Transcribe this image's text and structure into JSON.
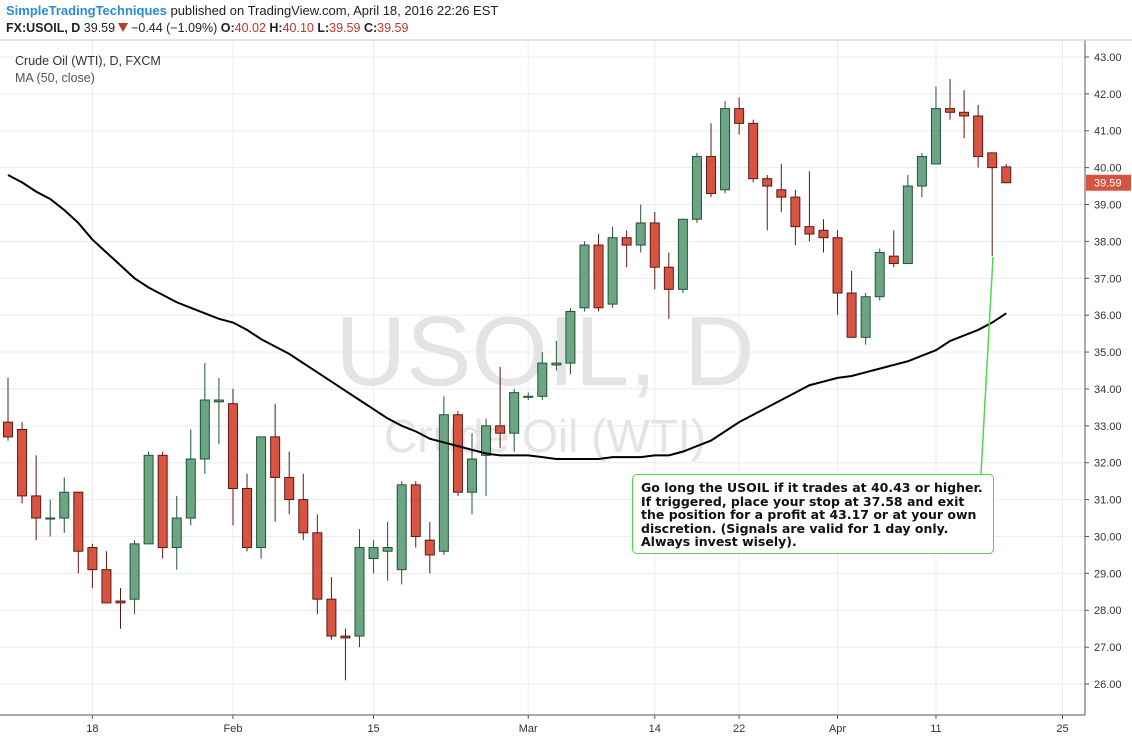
{
  "header": {
    "author": "SimpleTradingTechniques",
    "published": "published on TradingView.com, April 18, 2016 22:26 EST",
    "symbol": "FX:USOIL, D",
    "last": "39.59",
    "change": "−0.44 (−1.09%)",
    "ohlc": [
      {
        "label": "O:",
        "value": "40.02"
      },
      {
        "label": "H:",
        "value": "40.10"
      },
      {
        "label": "L:",
        "value": "39.59"
      },
      {
        "label": "C:",
        "value": "39.59"
      }
    ]
  },
  "chart_data": {
    "type": "candlestick",
    "title": "Crude Oil (WTI), D, FXCM",
    "watermark": [
      "USOIL, D",
      "Crude Oil (WTI)"
    ],
    "annotation": "Go long the USOIL if it trades at 40.43 or higher. If triggered, place your stop at 37.58 and exit the position for a profit at 43.17 or at your own discretion. (Signals are valid for 1 day only. Always invest wisely).",
    "up_color": "#6ba583",
    "up_border": "#225437",
    "down_color": "#d75442",
    "down_border": "#5b1a13",
    "x": [
      0,
      1,
      2,
      3,
      4,
      5,
      6,
      7,
      8,
      9,
      10,
      11,
      12,
      13,
      14,
      15,
      16,
      17,
      18,
      19,
      20,
      21,
      22,
      23,
      24,
      25,
      26,
      27,
      28,
      29,
      30,
      31,
      32,
      33,
      34,
      35,
      36,
      37,
      38,
      39,
      40,
      41,
      42,
      43,
      44,
      45,
      46,
      47,
      48,
      49,
      50,
      51,
      52,
      53,
      54,
      55,
      56,
      57,
      58,
      59,
      60,
      61,
      62,
      63,
      64,
      65,
      66,
      67,
      68,
      69,
      70,
      71
    ],
    "open": [
      33.1,
      32.9,
      31.1,
      30.5,
      30.5,
      31.2,
      29.7,
      29.1,
      28.25,
      28.3,
      29.8,
      32.2,
      29.7,
      30.5,
      32.1,
      33.65,
      33.6,
      31.3,
      29.7,
      32.7,
      31.6,
      31.0,
      30.1,
      28.3,
      27.3,
      27.3,
      29.4,
      29.6,
      29.1,
      31.4,
      29.9,
      29.6,
      33.3,
      31.2,
      32.2,
      33.0,
      32.8,
      33.8,
      33.8,
      34.65,
      34.7,
      36.2,
      37.9,
      36.3,
      38.1,
      37.9,
      38.5,
      37.3,
      36.7,
      38.6,
      40.3,
      39.4,
      41.6,
      41.2,
      39.7,
      39.4,
      39.2,
      38.4,
      38.3,
      38.1,
      36.6,
      35.4,
      36.5,
      37.6,
      37.4,
      39.5,
      40.1,
      41.6,
      41.5,
      41.4,
      40.4,
      40.02
    ],
    "high": [
      34.3,
      33.1,
      32.2,
      31.0,
      31.6,
      31.2,
      29.8,
      29.6,
      28.6,
      29.9,
      32.3,
      32.3,
      31.1,
      32.9,
      34.7,
      34.3,
      34.0,
      31.7,
      32.7,
      33.6,
      32.3,
      31.7,
      30.6,
      28.9,
      27.5,
      30.2,
      29.9,
      30.4,
      31.5,
      31.5,
      30.4,
      33.8,
      33.4,
      32.8,
      33.2,
      34.6,
      34.0,
      33.9,
      35.0,
      35.3,
      36.2,
      38.0,
      38.2,
      38.4,
      38.3,
      39.0,
      38.8,
      37.7,
      38.6,
      40.4,
      41.2,
      41.8,
      41.9,
      41.3,
      39.8,
      40.1,
      39.4,
      39.9,
      38.6,
      38.3,
      37.2,
      36.6,
      37.8,
      38.3,
      39.8,
      40.4,
      42.2,
      42.4,
      42.1,
      41.7,
      40.4,
      40.1
    ],
    "low": [
      32.6,
      30.9,
      29.9,
      30.0,
      30.1,
      29.0,
      28.6,
      28.2,
      27.5,
      27.9,
      29.8,
      29.4,
      29.1,
      30.3,
      31.7,
      32.5,
      30.3,
      29.6,
      29.4,
      30.4,
      30.6,
      29.9,
      27.9,
      27.2,
      26.1,
      27.0,
      29.0,
      28.8,
      28.7,
      29.7,
      29.0,
      29.5,
      31.1,
      30.6,
      31.1,
      32.4,
      32.3,
      33.7,
      33.7,
      34.5,
      34.4,
      36.1,
      36.1,
      36.2,
      37.3,
      37.7,
      36.7,
      35.9,
      36.6,
      38.5,
      39.2,
      39.3,
      40.9,
      39.6,
      38.3,
      38.8,
      37.9,
      38.0,
      37.7,
      36.0,
      35.4,
      35.2,
      36.4,
      37.3,
      37.4,
      39.2,
      40.1,
      41.3,
      40.8,
      40.0,
      37.6,
      39.59
    ],
    "close": [
      32.7,
      31.1,
      30.5,
      30.5,
      31.2,
      29.6,
      29.1,
      28.2,
      28.2,
      29.8,
      32.2,
      29.7,
      30.5,
      32.1,
      33.7,
      33.7,
      31.3,
      29.7,
      32.7,
      31.6,
      31.0,
      30.1,
      28.3,
      27.3,
      27.25,
      29.7,
      29.7,
      29.7,
      31.4,
      30.0,
      29.5,
      33.3,
      31.2,
      32.1,
      33.0,
      32.8,
      33.9,
      33.8,
      34.7,
      34.7,
      36.1,
      37.9,
      36.2,
      38.1,
      37.9,
      38.5,
      37.3,
      36.7,
      38.6,
      40.3,
      39.3,
      41.6,
      41.2,
      39.7,
      39.5,
      39.2,
      38.4,
      38.2,
      38.1,
      36.6,
      35.4,
      36.5,
      37.7,
      37.4,
      39.5,
      40.3,
      41.6,
      41.5,
      41.4,
      40.3,
      40.0,
      39.59
    ],
    "series": [
      {
        "name": "MA (50, close)",
        "color": "#000000",
        "values": [
          39.8,
          39.6,
          39.35,
          39.15,
          38.85,
          38.5,
          38.05,
          37.7,
          37.35,
          37.0,
          36.75,
          36.55,
          36.35,
          36.2,
          36.05,
          35.9,
          35.8,
          35.6,
          35.35,
          35.15,
          34.95,
          34.7,
          34.45,
          34.2,
          33.95,
          33.7,
          33.45,
          33.2,
          33.0,
          32.85,
          32.65,
          32.55,
          32.45,
          32.35,
          32.25,
          32.2,
          32.2,
          32.2,
          32.15,
          32.1,
          32.1,
          32.1,
          32.1,
          32.15,
          32.15,
          32.15,
          32.2,
          32.2,
          32.3,
          32.45,
          32.6,
          32.85,
          33.1,
          33.3,
          33.5,
          33.7,
          33.9,
          34.1,
          34.2,
          34.3,
          34.35,
          34.45,
          34.55,
          34.65,
          34.75,
          34.9,
          35.05,
          35.3,
          35.45,
          35.6,
          35.8,
          36.05
        ]
      }
    ],
    "last_price": {
      "value": 39.59,
      "label": "39.59"
    },
    "xlim": [
      -0.57,
      76.6
    ],
    "xticks": [
      {
        "value": 6,
        "label": "18"
      },
      {
        "value": 16,
        "label": "Feb"
      },
      {
        "value": 26,
        "label": "15"
      },
      {
        "value": 37,
        "label": "Mar"
      },
      {
        "value": 46,
        "label": "14"
      },
      {
        "value": 52,
        "label": "22"
      },
      {
        "value": 59,
        "label": "Apr"
      },
      {
        "value": 66,
        "label": "11"
      },
      {
        "value": 75,
        "label": "25"
      }
    ],
    "ylim": [
      25.16,
      43.46
    ],
    "yticks": [
      {
        "value": 26,
        "label": "26.00"
      },
      {
        "value": 27,
        "label": "27.00"
      },
      {
        "value": 28,
        "label": "28.00"
      },
      {
        "value": 29,
        "label": "29.00"
      },
      {
        "value": 30,
        "label": "30.00"
      },
      {
        "value": 31,
        "label": "31.00"
      },
      {
        "value": 32,
        "label": "32.00"
      },
      {
        "value": 33,
        "label": "33.00"
      },
      {
        "value": 34,
        "label": "34.00"
      },
      {
        "value": 35,
        "label": "35.00"
      },
      {
        "value": 36,
        "label": "36.00"
      },
      {
        "value": 37,
        "label": "37.00"
      },
      {
        "value": 38,
        "label": "38.00"
      },
      {
        "value": 39,
        "label": "39.00"
      },
      {
        "value": 40,
        "label": "40.00"
      },
      {
        "value": 41,
        "label": "41.00"
      },
      {
        "value": 42,
        "label": "42.00"
      },
      {
        "value": 43,
        "label": "43.00"
      }
    ],
    "grid": true
  }
}
